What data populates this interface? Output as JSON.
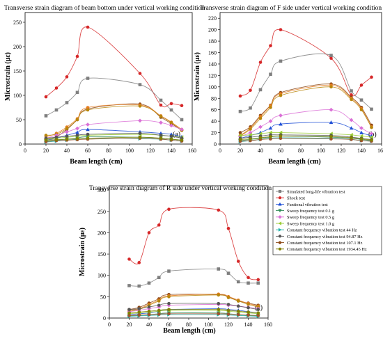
{
  "chart_data": [
    {
      "type": "scatter",
      "title": "Transverse strain diagram of beam bottom under vertical working condition",
      "panel_label": "(a)",
      "xlabel": "Beam length (cm)",
      "ylabel": "Microstrain (με)",
      "xlim": [
        0,
        160
      ],
      "ylim": [
        0,
        270
      ],
      "xticks": [
        0,
        20,
        40,
        60,
        80,
        100,
        120,
        140,
        160
      ],
      "yticks": [
        0,
        50,
        100,
        150,
        200,
        250
      ],
      "x": [
        20,
        30,
        40,
        50,
        60,
        110,
        130,
        140,
        150
      ],
      "series": [
        {
          "color": "#d62728",
          "marker": "circle",
          "values": [
            97,
            115,
            138,
            180,
            240,
            145,
            80,
            83,
            79
          ]
        },
        {
          "color": "#7f7f7f",
          "marker": "square",
          "values": [
            58,
            70,
            85,
            106,
            135,
            122,
            90,
            70,
            50
          ]
        },
        {
          "color": "#8b4513",
          "marker": "circle",
          "values": [
            10,
            15,
            30,
            50,
            72,
            82,
            55,
            42,
            28
          ]
        },
        {
          "color": "#e67e22",
          "marker": "circle",
          "values": [
            15,
            22,
            35,
            52,
            75,
            80,
            58,
            45,
            30
          ]
        },
        {
          "color": "#b8860b",
          "marker": "circle",
          "values": [
            18,
            20,
            32,
            50,
            70,
            78,
            57,
            44,
            28
          ]
        },
        {
          "color": "#da70d6",
          "marker": "diamond",
          "values": [
            12,
            18,
            25,
            32,
            40,
            48,
            44,
            38,
            30
          ]
        },
        {
          "color": "#1f4fd6",
          "marker": "triangle-up",
          "values": [
            8,
            12,
            18,
            24,
            30,
            25,
            22,
            20,
            15
          ]
        },
        {
          "color": "#2e8b57",
          "marker": "triangle-down",
          "values": [
            6,
            8,
            10,
            12,
            15,
            14,
            12,
            10,
            8
          ]
        },
        {
          "color": "#9acd32",
          "marker": "triangle-left",
          "values": [
            10,
            12,
            14,
            16,
            18,
            20,
            18,
            16,
            14
          ]
        },
        {
          "color": "#20b2aa",
          "marker": "triangle-right",
          "values": [
            4,
            6,
            8,
            10,
            12,
            11,
            10,
            8,
            6
          ]
        },
        {
          "color": "#555555",
          "marker": "circle",
          "values": [
            12,
            14,
            16,
            18,
            20,
            22,
            18,
            16,
            12
          ]
        },
        {
          "color": "#a0522d",
          "marker": "circle",
          "values": [
            5,
            7,
            8,
            9,
            10,
            12,
            10,
            8,
            6
          ]
        },
        {
          "color": "#808000",
          "marker": "circle",
          "values": [
            8,
            9,
            10,
            11,
            12,
            14,
            12,
            10,
            8
          ]
        }
      ]
    },
    {
      "type": "scatter",
      "title": "Transverse strain diagram of F side under vertical working condition",
      "panel_label": "(b)",
      "xlabel": "Beam length (cm)",
      "ylabel": "Microstrain (με)",
      "xlim": [
        0,
        160
      ],
      "ylim": [
        0,
        230
      ],
      "xticks": [
        0,
        20,
        40,
        60,
        80,
        100,
        120,
        140,
        160
      ],
      "yticks": [
        0,
        20,
        40,
        60,
        80,
        100,
        120,
        140,
        160,
        180,
        200,
        220
      ],
      "x": [
        20,
        30,
        40,
        50,
        60,
        110,
        130,
        140,
        150
      ],
      "series": [
        {
          "color": "#d62728",
          "marker": "circle",
          "values": [
            84,
            94,
            143,
            172,
            200,
            150,
            86,
            103,
            117
          ]
        },
        {
          "color": "#7f7f7f",
          "marker": "square",
          "values": [
            57,
            63,
            95,
            122,
            145,
            155,
            93,
            77,
            61
          ]
        },
        {
          "color": "#8b4513",
          "marker": "circle",
          "values": [
            20,
            30,
            50,
            68,
            90,
            105,
            82,
            64,
            33
          ]
        },
        {
          "color": "#e67e22",
          "marker": "circle",
          "values": [
            15,
            28,
            48,
            67,
            88,
            103,
            80,
            62,
            30
          ]
        },
        {
          "color": "#b8860b",
          "marker": "circle",
          "values": [
            14,
            26,
            45,
            64,
            85,
            100,
            78,
            60,
            29
          ]
        },
        {
          "color": "#da70d6",
          "marker": "diamond",
          "values": [
            13,
            20,
            30,
            40,
            50,
            60,
            42,
            28,
            18
          ]
        },
        {
          "color": "#1f4fd6",
          "marker": "triangle-up",
          "values": [
            10,
            15,
            20,
            28,
            35,
            38,
            28,
            20,
            14
          ]
        },
        {
          "color": "#2e8b57",
          "marker": "triangle-down",
          "values": [
            6,
            8,
            10,
            12,
            14,
            12,
            10,
            8,
            6
          ]
        },
        {
          "color": "#9acd32",
          "marker": "triangle-left",
          "values": [
            15,
            16,
            18,
            20,
            20,
            18,
            16,
            14,
            12
          ]
        },
        {
          "color": "#20b2aa",
          "marker": "triangle-right",
          "values": [
            4,
            6,
            8,
            10,
            11,
            10,
            8,
            6,
            5
          ]
        },
        {
          "color": "#555555",
          "marker": "circle",
          "values": [
            10,
            12,
            14,
            16,
            16,
            15,
            12,
            10,
            8
          ]
        },
        {
          "color": "#a0522d",
          "marker": "circle",
          "values": [
            5,
            6,
            8,
            9,
            10,
            9,
            8,
            6,
            5
          ]
        },
        {
          "color": "#808000",
          "marker": "circle",
          "values": [
            8,
            9,
            11,
            13,
            14,
            13,
            11,
            9,
            7
          ]
        }
      ]
    },
    {
      "type": "scatter",
      "title": "Transverse strain diagram of R side under vertical working condition",
      "panel_label": "(c)",
      "xlabel": "Beam length (cm)",
      "ylabel": "Microstrain (με)",
      "xlim": [
        0,
        160
      ],
      "ylim": [
        0,
        310
      ],
      "xticks": [
        0,
        20,
        40,
        60,
        80,
        100,
        120,
        140,
        160
      ],
      "yticks": [
        0,
        50,
        100,
        150,
        200,
        250,
        300
      ],
      "x": [
        20,
        30,
        40,
        50,
        60,
        110,
        120,
        130,
        140,
        150
      ],
      "legend": {
        "position": "right",
        "entries": [
          {
            "label": "Simulated long-life vibration test",
            "color": "#7f7f7f",
            "marker": "square"
          },
          {
            "label": "Shock test",
            "color": "#d62728",
            "marker": "circle"
          },
          {
            "label": "Funtional vibration test",
            "color": "#1f4fd6",
            "marker": "triangle-up"
          },
          {
            "label": "Sweep frequency test 0.1 g",
            "color": "#2e8b57",
            "marker": "triangle-down"
          },
          {
            "label": "Sweep frequency test 0.5 g",
            "color": "#da70d6",
            "marker": "diamond"
          },
          {
            "label": "Sweep frequency test 1.0 g",
            "color": "#9acd32",
            "marker": "triangle-left"
          },
          {
            "label": "Constant frequency vibration test 44 Hz",
            "color": "#20b2aa",
            "marker": "triangle-right"
          },
          {
            "label": "Constant frequency vibration test 94.87 Hz",
            "color": "#555555",
            "marker": "circle"
          },
          {
            "label": "Constant frequency vibration test 107.1 Hz",
            "color": "#8b4513",
            "marker": "circle"
          },
          {
            "label": "Constant frequency vibration test 1934.45 Hz",
            "color": "#808000",
            "marker": "circle"
          }
        ]
      },
      "series": [
        {
          "color": "#d62728",
          "marker": "circle",
          "values": [
            138,
            130,
            200,
            218,
            255,
            253,
            210,
            133,
            95,
            90
          ]
        },
        {
          "color": "#7f7f7f",
          "marker": "square",
          "values": [
            76,
            75,
            82,
            95,
            110,
            115,
            105,
            85,
            82,
            82
          ]
        },
        {
          "color": "#8b4513",
          "marker": "circle",
          "values": [
            20,
            25,
            35,
            45,
            55,
            55,
            50,
            40,
            35,
            30
          ]
        },
        {
          "color": "#e67e22",
          "marker": "circle",
          "values": [
            18,
            22,
            32,
            42,
            52,
            56,
            50,
            42,
            34,
            28
          ]
        },
        {
          "color": "#b8860b",
          "marker": "circle",
          "values": [
            16,
            20,
            30,
            40,
            50,
            54,
            48,
            40,
            32,
            26
          ]
        },
        {
          "color": "#da70d6",
          "marker": "diamond",
          "values": [
            15,
            18,
            22,
            26,
            30,
            32,
            30,
            28,
            25,
            22
          ]
        },
        {
          "color": "#1f4fd6",
          "marker": "triangle-up",
          "values": [
            8,
            10,
            12,
            16,
            20,
            22,
            20,
            18,
            15,
            12
          ]
        },
        {
          "color": "#2e8b57",
          "marker": "triangle-down",
          "values": [
            5,
            6,
            8,
            10,
            12,
            12,
            10,
            8,
            6,
            5
          ]
        },
        {
          "color": "#9acd32",
          "marker": "triangle-left",
          "values": [
            10,
            12,
            14,
            16,
            18,
            18,
            16,
            14,
            12,
            10
          ]
        },
        {
          "color": "#20b2aa",
          "marker": "triangle-right",
          "values": [
            4,
            5,
            6,
            7,
            8,
            8,
            7,
            6,
            5,
            4
          ]
        },
        {
          "color": "#555555",
          "marker": "circle",
          "values": [
            20,
            22,
            26,
            30,
            34,
            34,
            32,
            28,
            24,
            20
          ]
        },
        {
          "color": "#a0522d",
          "marker": "circle",
          "values": [
            6,
            7,
            8,
            9,
            10,
            10,
            9,
            8,
            7,
            6
          ]
        },
        {
          "color": "#808000",
          "marker": "circle",
          "values": [
            12,
            14,
            16,
            18,
            20,
            20,
            18,
            16,
            14,
            12
          ]
        }
      ]
    }
  ]
}
